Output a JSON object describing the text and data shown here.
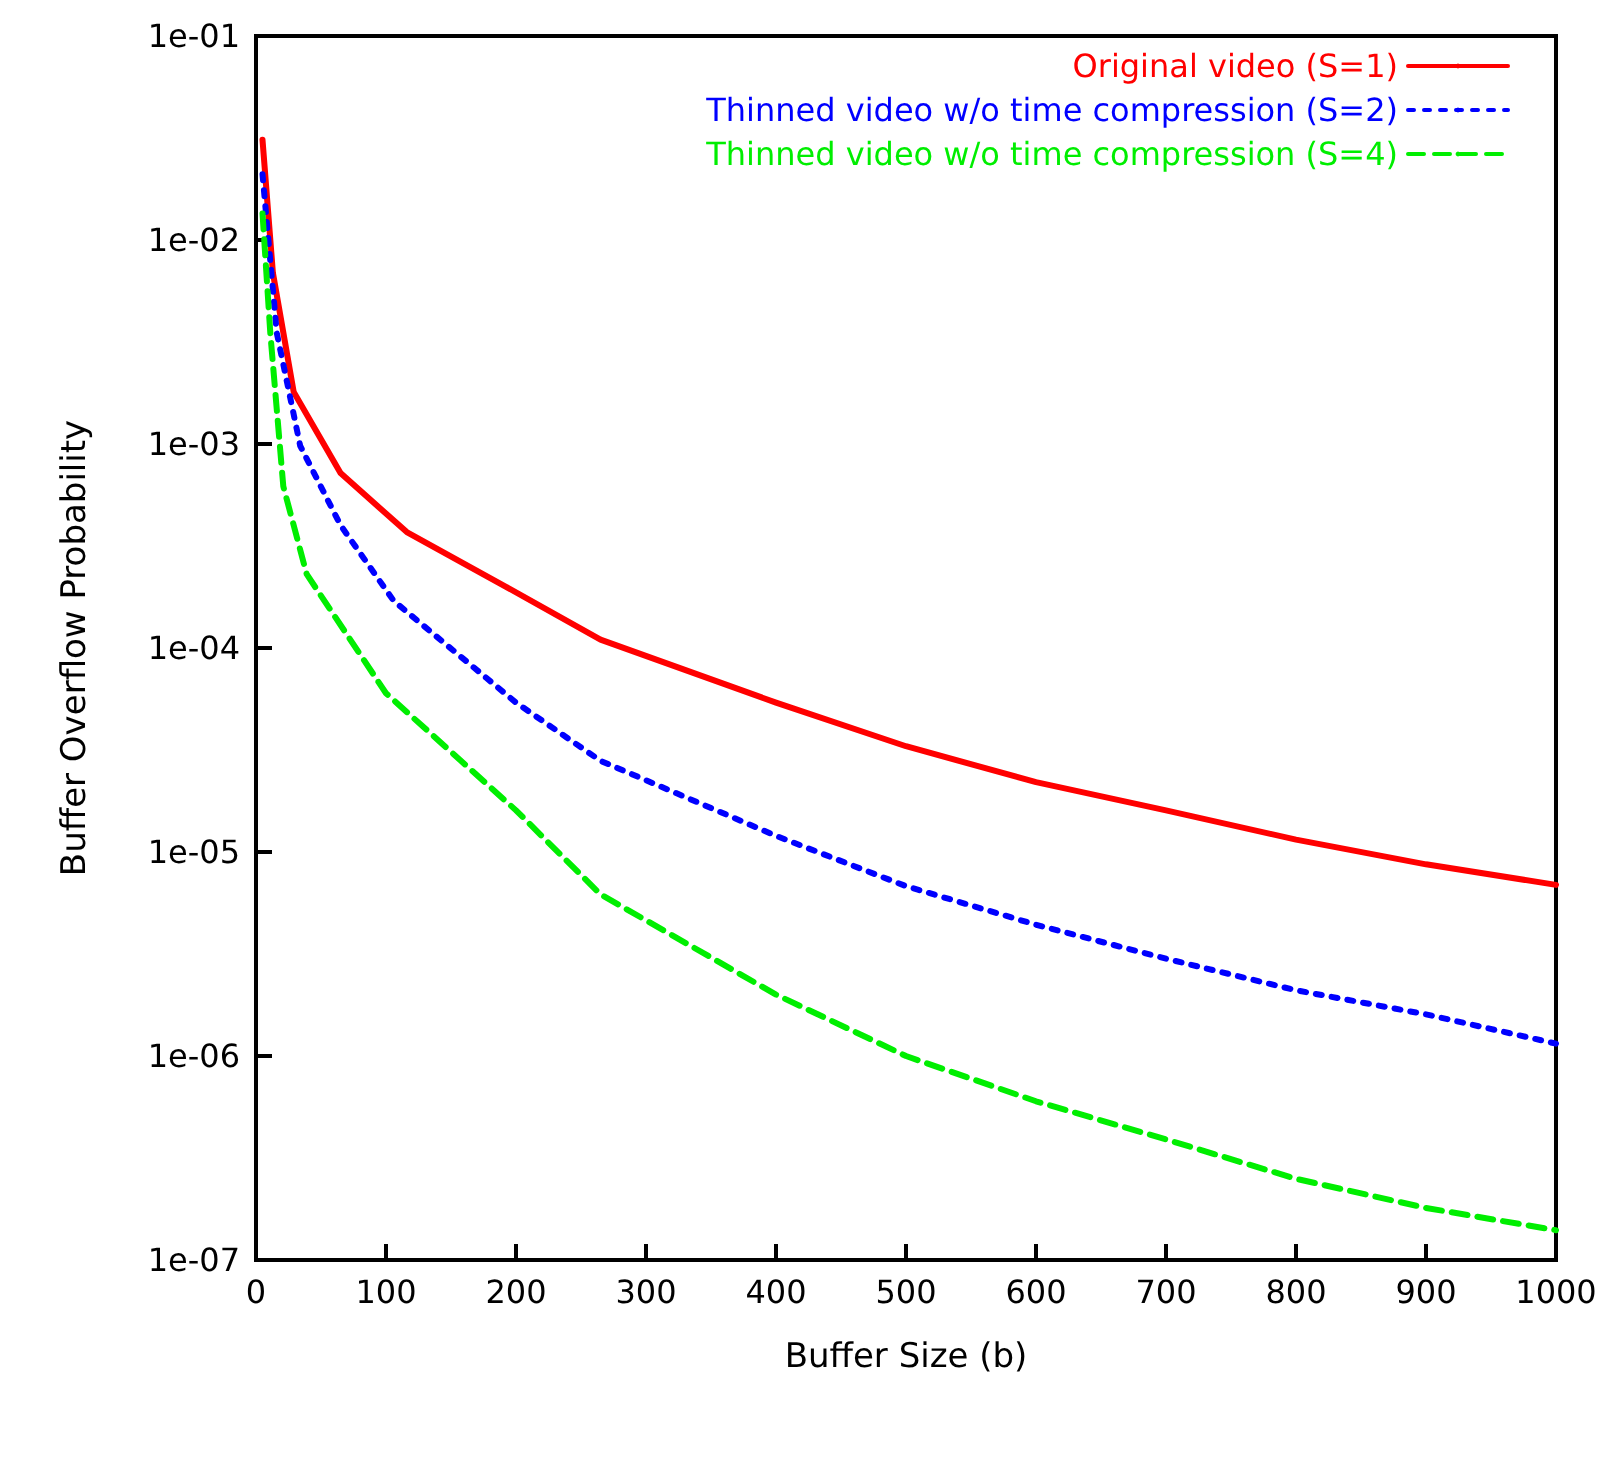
{
  "chart_data": {
    "type": "line",
    "xlabel": "Buffer Size (b)",
    "ylabel": "Buffer Overflow Probability",
    "log": "y",
    "grid": false,
    "legend": "top right",
    "marker": "none",
    "xlim": [
      0,
      1000
    ],
    "xticks": [
      0,
      100,
      200,
      300,
      400,
      500,
      600,
      700,
      800,
      900,
      1000
    ],
    "ylim": [
      1e-07,
      0.1
    ],
    "yticks": [
      {
        "value": 1e-07,
        "label": "1e-07"
      },
      {
        "value": 1e-06,
        "label": "1e-06"
      },
      {
        "value": 1e-05,
        "label": "1e-05"
      },
      {
        "value": 0.0001,
        "label": "1e-04"
      },
      {
        "value": 0.001,
        "label": "1e-03"
      },
      {
        "value": 0.01,
        "label": "1e-02"
      },
      {
        "value": 0.1,
        "label": "1e-01"
      }
    ],
    "series": [
      {
        "name": "Original video (S=1)",
        "color": "#ff0000",
        "line_style": "solid",
        "x": [
          5,
          13,
          29,
          65,
          116,
          192,
          265,
          400,
          500,
          600,
          700,
          800,
          900,
          1000
        ],
        "values": [
          0.031,
          0.0069,
          0.0018,
          0.00072,
          0.00037,
          0.0002,
          0.00011,
          5.4e-05,
          3.3e-05,
          2.2e-05,
          1.6e-05,
          1.15e-05,
          8.7e-06,
          6.9e-06
        ]
      },
      {
        "name": "Thinned video w/o time compression (S=2)",
        "color": "#0000ff",
        "line_style": "dotted",
        "x": [
          5,
          16,
          34,
          65,
          106,
          200,
          265,
          400,
          500,
          600,
          700,
          800,
          900,
          1000
        ],
        "values": [
          0.021,
          0.0035,
          0.00098,
          0.0004,
          0.00017,
          5.4e-05,
          2.8e-05,
          1.2e-05,
          6.8e-06,
          4.4e-06,
          3e-06,
          2.1e-06,
          1.6e-06,
          1.15e-06
        ]
      },
      {
        "name": "Thinned video w/o time compression (S=4)",
        "color": "#00ee00",
        "line_style": "dashed",
        "x": [
          5,
          11,
          21,
          39,
          100,
          200,
          265,
          400,
          500,
          600,
          700,
          800,
          900,
          1000
        ],
        "values": [
          0.0135,
          0.0035,
          0.00062,
          0.00023,
          6e-05,
          1.6e-05,
          6.2e-06,
          2e-06,
          1e-06,
          6e-07,
          3.9e-07,
          2.5e-07,
          1.8e-07,
          1.4e-07
        ]
      }
    ]
  }
}
